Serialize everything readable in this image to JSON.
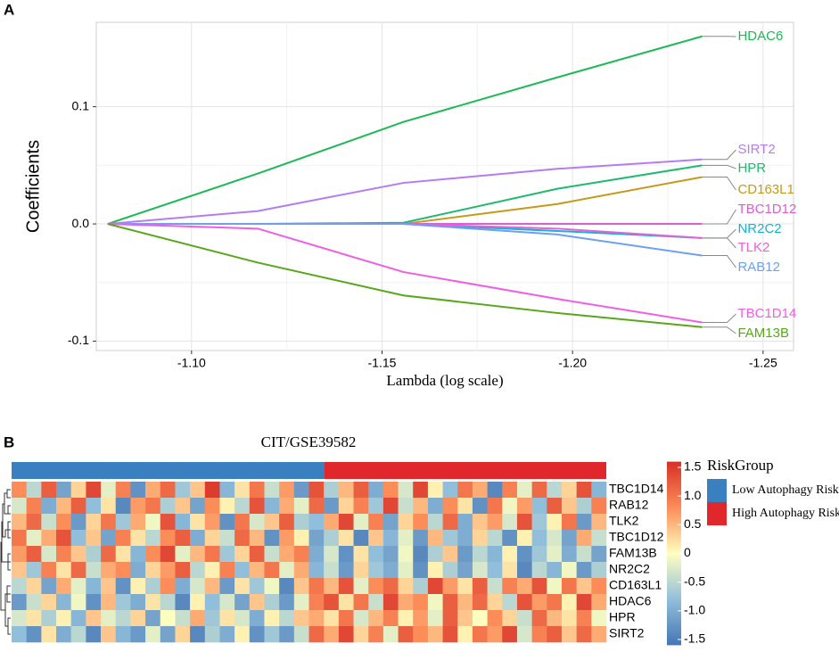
{
  "chart_data": [
    {
      "type": "line",
      "panel_label": "A",
      "x_label": "Lambda (log scale)",
      "y_label": "Coefficients",
      "x": [
        -1.078,
        -1.1174,
        -1.1556,
        -1.196,
        -1.234
      ],
      "xlim": [
        -1.075,
        -1.258
      ],
      "xticks": [
        {
          "value": -1.1,
          "label": "-1.10"
        },
        -1.15,
        {
          "value": -1.2,
          "label": "-1.20"
        },
        -1.25
      ],
      "ylim": [
        -0.108,
        0.172
      ],
      "yticks": [
        0.1,
        {
          "value": 0,
          "label": "0.0"
        },
        -0.1
      ],
      "grid": true,
      "series": [
        {
          "name": "HDAC6",
          "color": "#1db954",
          "values": [
            0,
            0.043,
            0.087,
            0.125,
            0.16
          ]
        },
        {
          "name": "SIRT2",
          "color": "#b57cf2",
          "values": [
            0,
            0.011,
            0.035,
            0.047,
            0.055
          ]
        },
        {
          "name": "HPR",
          "color": "#1fba6e",
          "values": [
            0,
            0,
            0.001,
            0.03,
            0.05
          ]
        },
        {
          "name": "CD163L1",
          "color": "#c59a1a",
          "values": [
            0,
            0,
            0,
            0.017,
            0.04
          ]
        },
        {
          "name": "TBC1D12",
          "color": "#e05bd6",
          "values": [
            0,
            0,
            0,
            0,
            0
          ]
        },
        {
          "name": "NR2C2",
          "color": "#17b2d1",
          "values": [
            0,
            0,
            0,
            -0.006,
            -0.012
          ]
        },
        {
          "name": "TLK2",
          "color": "#e563d8",
          "values": [
            0,
            0,
            0,
            -0.004,
            -0.012
          ]
        },
        {
          "name": "RAB12",
          "color": "#6e9ff0",
          "values": [
            0,
            0,
            0,
            -0.009,
            -0.027
          ]
        },
        {
          "name": "TBC1D14",
          "color": "#ef5ee6",
          "values": [
            0,
            -0.004,
            -0.041,
            -0.064,
            -0.084
          ]
        },
        {
          "name": "FAM13B",
          "color": "#58a71b",
          "values": [
            0,
            -0.033,
            -0.061,
            -0.076,
            -0.088
          ]
        }
      ]
    },
    {
      "type": "heatmap",
      "panel_label": "B",
      "title": "CIT/GSE39582",
      "rows": [
        "TBC1D14",
        "RAB12",
        "TLK2",
        "TBC1D12",
        "FAM13B",
        "NR2C2",
        "CD163L1",
        "HDAC6",
        "HPR",
        "SIRT2"
      ],
      "values": [
        [
          0.8,
          -0.5,
          1.2,
          -1.1,
          0.3,
          1.4,
          -0.2,
          0.9,
          -1.3,
          0.6,
          1.1,
          -0.7,
          0.4,
          1.5,
          -0.9,
          0.2,
          1.0,
          -0.4,
          0.7,
          -1.2,
          1.3,
          -0.6,
          0.5,
          1.2,
          -1.0,
          0.8,
          -0.3,
          1.4,
          0.1,
          -0.8,
          1.0,
          0.6,
          -1.4,
          0.9,
          -0.2,
          1.1,
          -0.5,
          0.3,
          1.3,
          -0.9
        ],
        [
          -0.3,
          0.9,
          -1.0,
          0.5,
          1.2,
          -0.8,
          0.2,
          -1.4,
          0.7,
          1.0,
          -0.6,
          0.4,
          -1.1,
          0.8,
          0.1,
          -0.5,
          1.3,
          -0.9,
          0.6,
          -0.2,
          1.1,
          -1.2,
          0.3,
          0.9,
          -0.7,
          1.4,
          -0.4,
          0.5,
          -1.0,
          0.8,
          0.2,
          -1.3,
          1.0,
          -0.1,
          0.7,
          -0.8,
          1.2,
          0.4,
          -0.6,
          0.9
        ],
        [
          0.5,
          1.1,
          -0.4,
          0.8,
          -1.2,
          0.3,
          1.0,
          -0.7,
          0.6,
          -0.1,
          1.3,
          -0.9,
          0.2,
          0.7,
          -1.3,
          1.0,
          -0.3,
          0.4,
          1.2,
          -0.6,
          -0.8,
          0.6,
          1.4,
          -0.2,
          0.9,
          -1.1,
          0.3,
          0.8,
          -0.5,
          1.1,
          -1.0,
          0.4,
          0.7,
          -0.3,
          1.3,
          -0.7,
          0.1,
          1.0,
          -1.2,
          0.5
        ],
        [
          1.0,
          -0.2,
          0.6,
          1.3,
          -0.8,
          0.4,
          -1.1,
          0.9,
          0.2,
          -0.5,
          0.8,
          1.2,
          -1.0,
          0.3,
          -0.4,
          1.1,
          0.5,
          -1.3,
          0.7,
          0.1,
          -1.1,
          -0.6,
          0.2,
          -1.4,
          0.4,
          -0.9,
          -0.2,
          -1.2,
          0.5,
          -0.7,
          -1.0,
          0.3,
          -0.5,
          -1.3,
          0.1,
          -0.8,
          -0.3,
          -1.1,
          0.6,
          -0.4
        ],
        [
          0.7,
          1.2,
          -0.3,
          0.9,
          0.4,
          -0.6,
          1.1,
          0.2,
          -0.9,
          0.8,
          1.4,
          -0.2,
          0.5,
          1.0,
          -0.7,
          0.3,
          1.2,
          -0.4,
          0.6,
          0.9,
          -1.0,
          -0.3,
          -1.3,
          0.2,
          -0.8,
          -1.1,
          -0.1,
          -1.4,
          -0.6,
          0.4,
          -1.2,
          -0.5,
          -0.9,
          0.1,
          -1.3,
          -0.7,
          -0.2,
          -1.0,
          -0.4,
          -1.1
        ],
        [
          0.4,
          -0.7,
          0.9,
          0.2,
          1.1,
          -0.4,
          0.6,
          0.8,
          -1.0,
          0.3,
          0.7,
          1.2,
          -0.5,
          0.1,
          0.9,
          -0.8,
          0.5,
          1.0,
          -0.2,
          0.6,
          -0.9,
          -0.4,
          -1.2,
          0.3,
          -0.7,
          -1.0,
          -0.2,
          -1.3,
          0.1,
          -0.6,
          -1.1,
          -0.3,
          -0.8,
          0.2,
          -1.4,
          -0.5,
          -0.9,
          -0.1,
          -1.2,
          -0.6
        ],
        [
          -0.5,
          0.3,
          -1.1,
          0.6,
          -0.2,
          -0.9,
          0.4,
          -1.3,
          0.1,
          -0.6,
          0.8,
          -1.0,
          -0.3,
          0.5,
          -1.2,
          0.2,
          -0.7,
          -0.1,
          -1.4,
          0.4,
          1.0,
          0.5,
          1.3,
          -0.2,
          0.8,
          1.1,
          0.3,
          -0.6,
          1.4,
          0.7,
          0.2,
          1.2,
          -0.4,
          0.9,
          0.6,
          1.3,
          -0.1,
          1.0,
          0.4,
          0.8
        ],
        [
          -1.2,
          -0.4,
          0.3,
          -0.9,
          -0.1,
          -1.3,
          0.5,
          -0.7,
          -1.0,
          0.2,
          -0.5,
          -1.4,
          0.1,
          -0.8,
          -0.3,
          -1.1,
          0.4,
          -0.6,
          -1.2,
          -0.2,
          0.9,
          1.3,
          0.2,
          1.0,
          -0.4,
          1.4,
          0.6,
          0.8,
          -0.1,
          1.2,
          0.5,
          1.1,
          0.3,
          -0.5,
          1.3,
          0.7,
          1.0,
          0.1,
          1.4,
          0.6
        ],
        [
          -0.3,
          0.2,
          -0.6,
          0.1,
          -0.9,
          0.4,
          -0.2,
          -0.5,
          0.3,
          -1.1,
          0.0,
          -0.4,
          0.6,
          -0.7,
          0.2,
          -0.3,
          -1.0,
          0.1,
          -0.5,
          0.4,
          0.6,
          0.2,
          1.0,
          -0.3,
          0.5,
          0.9,
          0.1,
          0.7,
          -0.2,
          1.2,
          0.4,
          0.0,
          0.8,
          0.3,
          -0.4,
          1.1,
          0.5,
          0.2,
          0.9,
          -0.1
        ],
        [
          -0.8,
          -1.3,
          0.2,
          -1.0,
          -0.5,
          -1.4,
          0.4,
          -0.9,
          -1.2,
          -0.2,
          -1.1,
          0.3,
          -1.4,
          -0.6,
          -1.0,
          0.1,
          -1.3,
          -0.7,
          -1.2,
          -0.4,
          1.1,
          0.6,
          1.4,
          0.3,
          0.9,
          -0.2,
          1.2,
          0.8,
          0.5,
          1.3,
          0.1,
          1.0,
          0.7,
          1.4,
          -0.3,
          0.9,
          1.2,
          0.4,
          1.1,
          0.6
        ]
      ],
      "zlim": [
        -1.6,
        1.6
      ],
      "colorscale": [
        "#4575b4",
        "#91bfdb",
        "#ffffbf",
        "#fc8d59",
        "#d73027"
      ],
      "zticks": [
        1.5,
        {
          "value": 1,
          "label": "1.0"
        },
        0.5,
        0,
        -0.5,
        {
          "value": -1,
          "label": "-1.0"
        },
        -1.5
      ],
      "annotation": {
        "name": "RiskGroup",
        "levels": [
          {
            "name": "Low Autophagy Risk",
            "color": "#3a7fbf",
            "count": 21
          },
          {
            "name": "High Autophagy Risk",
            "color": "#e0272b",
            "count": 19
          }
        ]
      }
    }
  ]
}
